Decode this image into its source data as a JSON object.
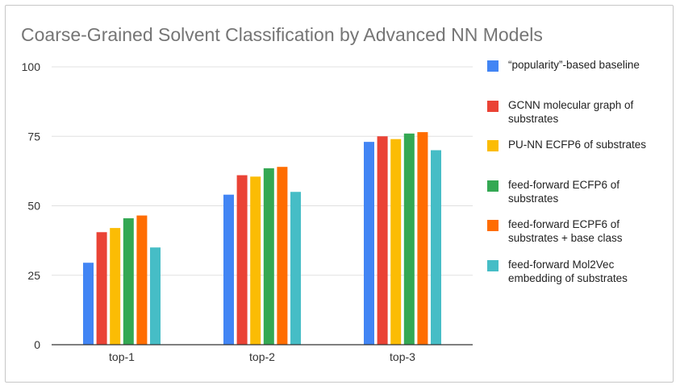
{
  "chart_data": {
    "type": "bar",
    "title": "Coarse-Grained Solvent Classification by Advanced NN Models",
    "xlabel": "",
    "ylabel": "",
    "categories": [
      "top-1",
      "top-2",
      "top-3"
    ],
    "ylim": [
      0,
      100
    ],
    "yticks": [
      "0",
      "25",
      "50",
      "75",
      "100"
    ],
    "grid": true,
    "legend_position": "right",
    "series": [
      {
        "name": "“popularity”-based baseline",
        "color": "#4285f4",
        "values": [
          29.5,
          54,
          73
        ]
      },
      {
        "name": "GCNN molecular graph of substrates",
        "color": "#ea4335",
        "values": [
          40.5,
          61,
          75
        ]
      },
      {
        "name": "PU-NN ECFP6 of substrates",
        "color": "#fbbc04",
        "values": [
          42,
          60.5,
          74
        ]
      },
      {
        "name": "feed-forward ECFP6 of substrates",
        "color": "#34a853",
        "values": [
          45.5,
          63.5,
          76
        ]
      },
      {
        "name": "feed-forward ECPF6 of substrates + base class",
        "color": "#ff6d01",
        "values": [
          46.5,
          64,
          76.5
        ]
      },
      {
        "name": "feed-forward Mol2Vec embedding of substrates",
        "color": "#46bdc6",
        "values": [
          35,
          55,
          70
        ]
      }
    ]
  }
}
